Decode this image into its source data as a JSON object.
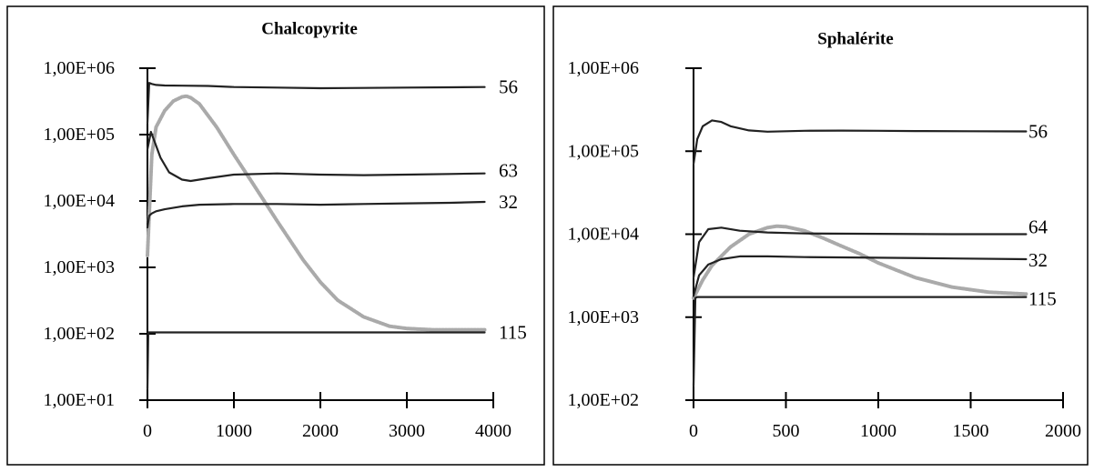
{
  "chart_data": [
    {
      "type": "line",
      "title": "Chalcopyrite",
      "xlabel": "",
      "ylabel": "",
      "y_scale": "log",
      "xlim": [
        0,
        4000
      ],
      "ylim": [
        10,
        1000000
      ],
      "x_ticks": [
        0,
        1000,
        2000,
        3000,
        4000
      ],
      "x_tick_labels": [
        "0",
        "1000",
        "2000",
        "3000",
        "4000"
      ],
      "y_ticks": [
        10,
        100,
        1000,
        10000,
        100000,
        1000000
      ],
      "y_tick_labels": [
        "1,00E+01",
        "1,00E+02",
        "1,00E+03",
        "1,00E+04",
        "1,00E+05",
        "1,00E+06"
      ],
      "grid": false,
      "legend": "none",
      "series": [
        {
          "name": "56",
          "color": "#222222",
          "x": [
            0,
            20,
            50,
            100,
            200,
            400,
            700,
            1000,
            1500,
            2000,
            2500,
            3000,
            3500,
            3900
          ],
          "values": [
            150000,
            600000,
            580000,
            560000,
            550000,
            545000,
            540000,
            520000,
            510000,
            500000,
            505000,
            510000,
            515000,
            520000
          ]
        },
        {
          "name": "63",
          "color": "#222222",
          "x": [
            0,
            40,
            80,
            150,
            250,
            400,
            500,
            700,
            1000,
            1500,
            2000,
            2500,
            3000,
            3500,
            3900
          ],
          "values": [
            60000,
            110000,
            80000,
            45000,
            27000,
            21000,
            20000,
            22000,
            25000,
            26000,
            25000,
            24500,
            25000,
            25500,
            26000
          ]
        },
        {
          "name": "32",
          "color": "#222222",
          "x": [
            0,
            20,
            50,
            100,
            200,
            400,
            600,
            1000,
            1500,
            2000,
            2500,
            3000,
            3500,
            3900
          ],
          "values": [
            4000,
            6000,
            6500,
            7000,
            7500,
            8300,
            8800,
            9000,
            9000,
            8800,
            9000,
            9200,
            9400,
            9700
          ]
        },
        {
          "name": "115",
          "color": "#222222",
          "x": [
            0,
            10,
            30,
            100,
            1000,
            2000,
            3000,
            3900
          ],
          "values": [
            15,
            105,
            105,
            105,
            105,
            105,
            105,
            105
          ]
        },
        {
          "name": "",
          "color": "#aaaaaa",
          "x": [
            0,
            50,
            100,
            200,
            300,
            400,
            450,
            500,
            600,
            800,
            1000,
            1200,
            1500,
            1800,
            2000,
            2200,
            2500,
            2800,
            3000,
            3300,
            3600,
            3900
          ],
          "values": [
            1500,
            50000,
            130000,
            230000,
            320000,
            370000,
            380000,
            360000,
            290000,
            130000,
            50000,
            20000,
            5000,
            1300,
            600,
            320,
            180,
            130,
            120,
            115,
            115,
            115
          ]
        }
      ],
      "annotations": [
        "56",
        "63",
        "32",
        "115"
      ]
    },
    {
      "type": "line",
      "title": "Sphalérite",
      "xlabel": "",
      "ylabel": "",
      "y_scale": "log",
      "xlim": [
        0,
        2000
      ],
      "ylim": [
        100,
        1000000
      ],
      "x_ticks": [
        0,
        500,
        1000,
        1500,
        2000
      ],
      "x_tick_labels": [
        "0",
        "500",
        "1000",
        "1500",
        "2000"
      ],
      "y_ticks": [
        100,
        1000,
        10000,
        100000,
        1000000
      ],
      "y_tick_labels": [
        "1,00E+02",
        "1,00E+03",
        "1,00E+04",
        "1,00E+05",
        "1,00E+06"
      ],
      "grid": false,
      "legend": "none",
      "series": [
        {
          "name": "56",
          "color": "#222222",
          "x": [
            0,
            20,
            50,
            100,
            150,
            200,
            300,
            400,
            600,
            800,
            1000,
            1200,
            1500,
            1800
          ],
          "values": [
            70000,
            140000,
            200000,
            235000,
            225000,
            200000,
            178000,
            172000,
            176000,
            177000,
            176000,
            175000,
            174000,
            173000
          ]
        },
        {
          "name": "64",
          "color": "#222222",
          "x": [
            0,
            30,
            80,
            150,
            250,
            400,
            600,
            1000,
            1400,
            1800
          ],
          "values": [
            3000,
            8000,
            11500,
            12000,
            11000,
            10500,
            10200,
            10100,
            10000,
            10000
          ]
        },
        {
          "name": "32",
          "color": "#222222",
          "x": [
            0,
            30,
            80,
            150,
            250,
            400,
            600,
            1000,
            1400,
            1800
          ],
          "values": [
            1800,
            3200,
            4300,
            5000,
            5400,
            5400,
            5300,
            5200,
            5100,
            5000
          ]
        },
        {
          "name": "115",
          "color": "#222222",
          "x": [
            0,
            10,
            20,
            100,
            1000,
            1800
          ],
          "values": [
            150,
            1700,
            1750,
            1750,
            1750,
            1750
          ]
        },
        {
          "name": "",
          "color": "#aaaaaa",
          "x": [
            0,
            50,
            100,
            200,
            300,
            400,
            450,
            500,
            600,
            700,
            800,
            900,
            1000,
            1200,
            1400,
            1600,
            1800
          ],
          "values": [
            1700,
            2800,
            4200,
            7000,
            10000,
            12000,
            12500,
            12300,
            11000,
            9000,
            7200,
            5800,
            4500,
            3000,
            2300,
            2000,
            1900
          ]
        }
      ],
      "annotations": [
        "56",
        "64",
        "32",
        "115"
      ]
    }
  ]
}
